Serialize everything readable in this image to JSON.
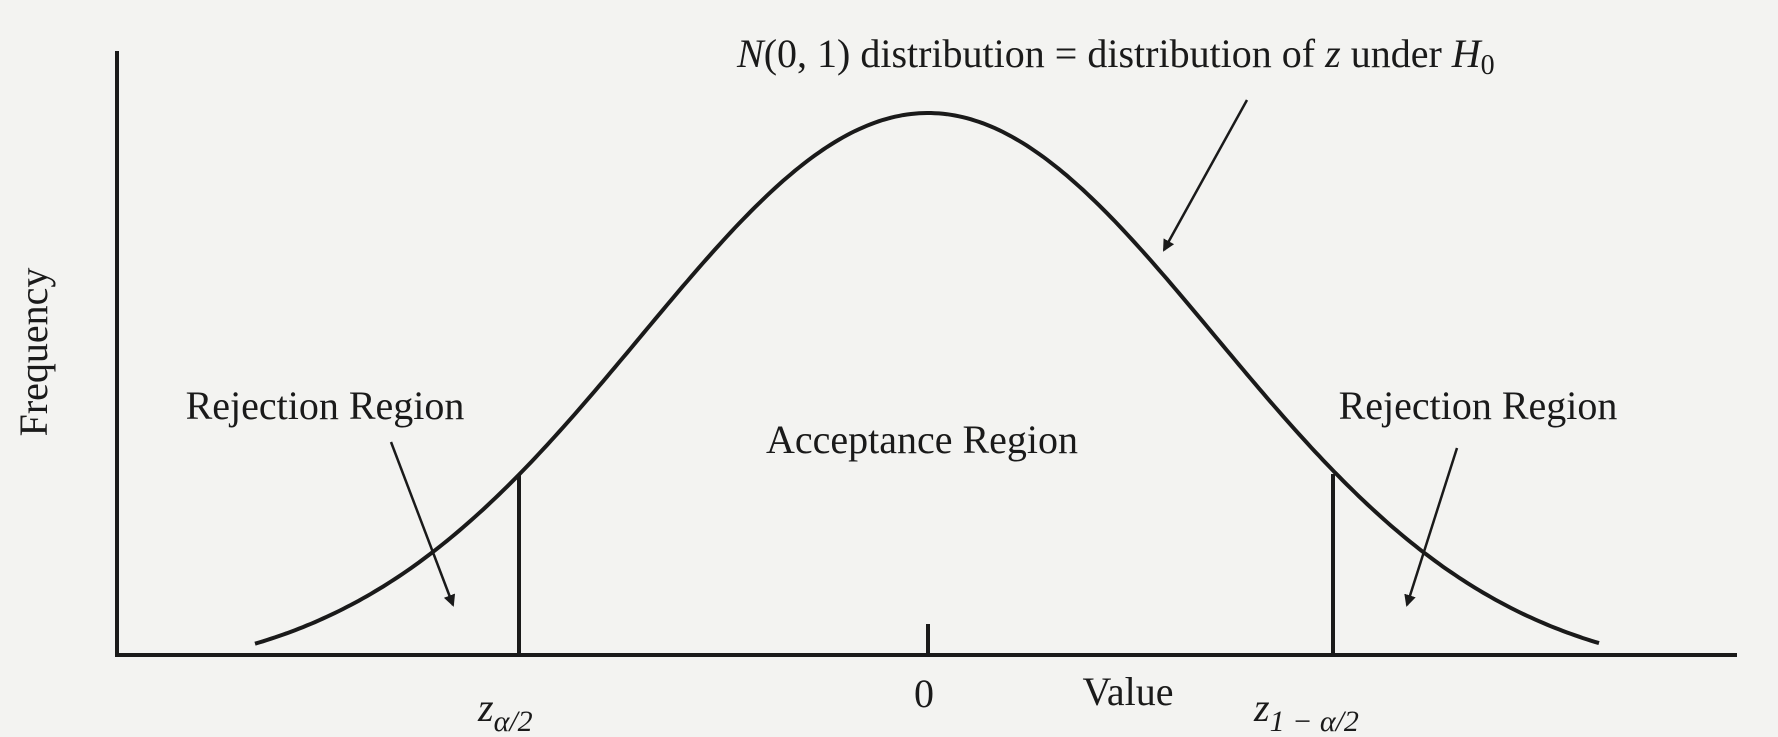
{
  "title_parts": [
    "N",
    "(0, 1) distribution = distribution of ",
    "z",
    " under ",
    "H",
    "0"
  ],
  "y_axis_label": "Frequency",
  "x_axis_label": "Value",
  "regions": {
    "left": "Rejection Region",
    "middle": "Acceptance Region",
    "right": "Rejection Region"
  },
  "x_labels": {
    "lower": [
      "z",
      "α/2"
    ],
    "center": "0",
    "upper": [
      "z",
      "1 − α/2"
    ]
  }
}
